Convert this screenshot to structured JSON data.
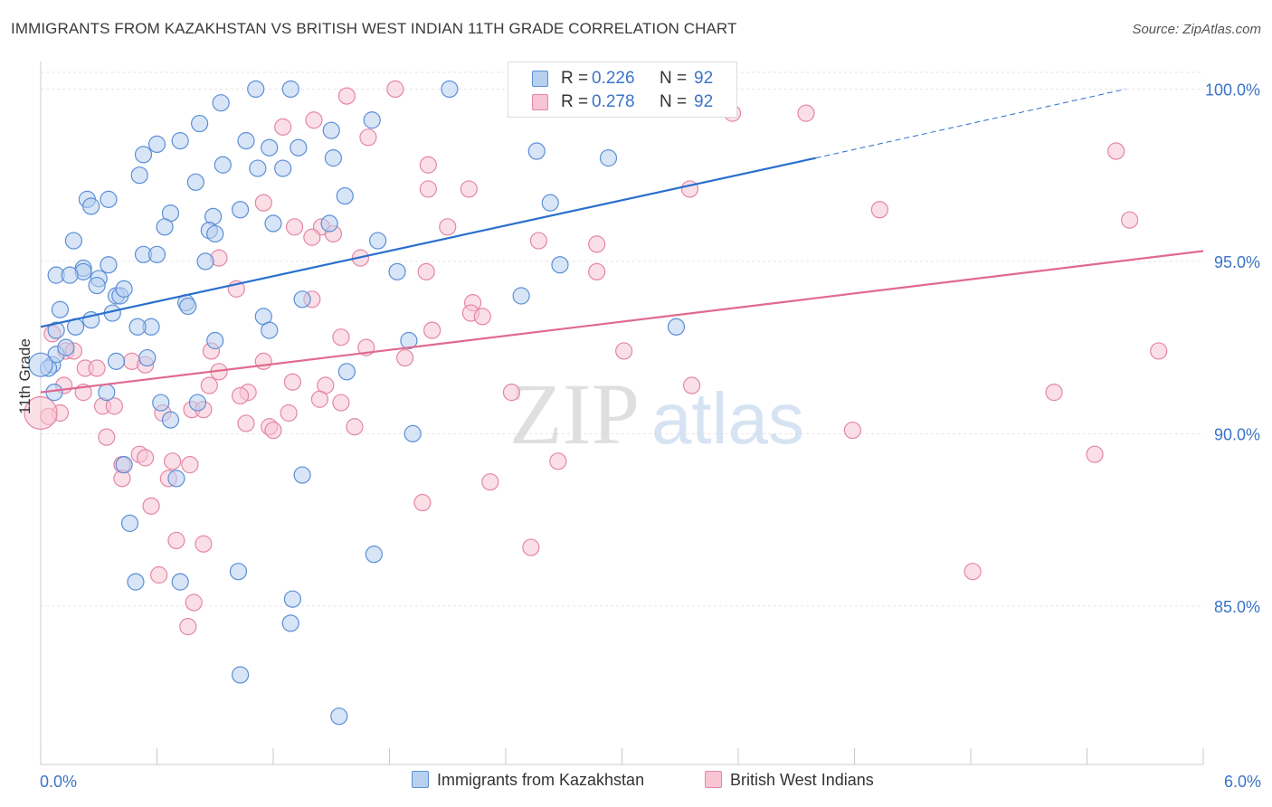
{
  "title": "IMMIGRANTS FROM KAZAKHSTAN VS BRITISH WEST INDIAN 11TH GRADE CORRELATION CHART",
  "source": "Source: ZipAtlas.com",
  "watermark": {
    "zip": "ZIP",
    "atlas": "atlas"
  },
  "legend_top": [
    {
      "r_label": "R =",
      "r_value": "0.226",
      "n_label": "N =",
      "n_value": "92"
    },
    {
      "r_label": "R =",
      "r_value": "0.278",
      "n_label": "N =",
      "n_value": "92"
    }
  ],
  "legend_bottom": [
    "Immigrants from Kazakhstan",
    "British West Indians"
  ],
  "colors": {
    "blue_fill": "#b8d0f0",
    "blue_stroke": "#5b8fd6",
    "blue_line": "#2a6fcc",
    "pink_fill": "#f8c4d4",
    "pink_stroke": "#e486a6",
    "pink_line": "#e0698f",
    "axis_text": "#3b74c8",
    "grid": "#e6e6e6"
  },
  "chart_data": {
    "type": "scatter",
    "title": "IMMIGRANTS FROM KAZAKHSTAN VS BRITISH WEST INDIAN 11TH GRADE CORRELATION CHART",
    "xlabel": "",
    "ylabel": "11th Grade",
    "xlim": [
      0,
      6
    ],
    "ylim": [
      80.4,
      100.8
    ],
    "x_tick_labels": [
      "0.0%",
      "6.0%"
    ],
    "y_ticks": [
      85,
      90,
      95,
      100
    ],
    "y_tick_labels": [
      "85.0%",
      "90.0%",
      "95.0%",
      "100.0%"
    ],
    "grid": true,
    "legend_position": "top-center",
    "series": [
      {
        "name": "Immigrants from Kazakhstan",
        "R": 0.226,
        "N": 92,
        "trend": {
          "x0": 0.0,
          "y0": 93.1,
          "x1": 4.0,
          "y1": 98.0,
          "dash_to_x": 5.6,
          "dash_to_y": 100.0
        },
        "points": [
          [
            1.11,
            100.0
          ],
          [
            1.29,
            100.0
          ],
          [
            2.11,
            100.0
          ],
          [
            0.93,
            99.6
          ],
          [
            1.71,
            99.1
          ],
          [
            0.82,
            99.0
          ],
          [
            1.5,
            98.8
          ],
          [
            0.72,
            98.5
          ],
          [
            1.06,
            98.5
          ],
          [
            1.18,
            98.3
          ],
          [
            0.6,
            98.4
          ],
          [
            0.53,
            98.1
          ],
          [
            1.33,
            98.3
          ],
          [
            2.56,
            98.2
          ],
          [
            1.51,
            98.0
          ],
          [
            2.93,
            98.0
          ],
          [
            0.94,
            97.8
          ],
          [
            1.12,
            97.7
          ],
          [
            1.25,
            97.7
          ],
          [
            0.51,
            97.5
          ],
          [
            0.8,
            97.3
          ],
          [
            0.24,
            96.8
          ],
          [
            0.35,
            96.8
          ],
          [
            1.57,
            96.9
          ],
          [
            0.26,
            96.6
          ],
          [
            1.03,
            96.5
          ],
          [
            0.67,
            96.4
          ],
          [
            0.89,
            96.3
          ],
          [
            2.63,
            96.7
          ],
          [
            1.2,
            96.1
          ],
          [
            0.64,
            96.0
          ],
          [
            1.49,
            96.1
          ],
          [
            0.87,
            95.9
          ],
          [
            0.9,
            95.8
          ],
          [
            0.17,
            95.6
          ],
          [
            1.74,
            95.6
          ],
          [
            0.53,
            95.2
          ],
          [
            0.6,
            95.2
          ],
          [
            0.85,
            95.0
          ],
          [
            0.35,
            94.9
          ],
          [
            0.22,
            94.8
          ],
          [
            0.22,
            94.7
          ],
          [
            0.08,
            94.6
          ],
          [
            0.15,
            94.6
          ],
          [
            0.3,
            94.5
          ],
          [
            0.29,
            94.3
          ],
          [
            0.39,
            94.0
          ],
          [
            0.41,
            94.0
          ],
          [
            0.75,
            93.8
          ],
          [
            0.76,
            93.7
          ],
          [
            0.1,
            93.6
          ],
          [
            0.37,
            93.5
          ],
          [
            1.15,
            93.4
          ],
          [
            0.26,
            93.3
          ],
          [
            0.57,
            93.1
          ],
          [
            0.5,
            93.1
          ],
          [
            1.35,
            93.9
          ],
          [
            1.84,
            94.7
          ],
          [
            2.48,
            94.0
          ],
          [
            3.28,
            93.1
          ],
          [
            1.18,
            93.0
          ],
          [
            0.18,
            93.1
          ],
          [
            0.9,
            92.7
          ],
          [
            0.39,
            92.1
          ],
          [
            0.06,
            92.0
          ],
          [
            0.08,
            92.3
          ],
          [
            0.04,
            91.9
          ],
          [
            0.07,
            91.2
          ],
          [
            0.34,
            91.2
          ],
          [
            1.58,
            91.8
          ],
          [
            0.62,
            90.9
          ],
          [
            0.81,
            90.9
          ],
          [
            0.67,
            90.4
          ],
          [
            1.92,
            90.0
          ],
          [
            0.43,
            89.1
          ],
          [
            0.7,
            88.7
          ],
          [
            1.35,
            88.8
          ],
          [
            0.46,
            87.4
          ],
          [
            1.72,
            86.5
          ],
          [
            1.02,
            86.0
          ],
          [
            0.49,
            85.7
          ],
          [
            0.72,
            85.7
          ],
          [
            1.3,
            85.2
          ],
          [
            1.29,
            84.5
          ],
          [
            1.03,
            83.0
          ],
          [
            1.54,
            81.8
          ],
          [
            0.08,
            93.0
          ],
          [
            0.13,
            92.5
          ],
          [
            2.68,
            94.9
          ],
          [
            0.43,
            94.2
          ],
          [
            1.9,
            92.7
          ],
          [
            0.55,
            92.2
          ]
        ]
      },
      {
        "name": "British West Indians",
        "R": 0.278,
        "N": 92,
        "trend": {
          "x0": 0.0,
          "y0": 91.2,
          "x1": 6.0,
          "y1": 95.3
        },
        "points": [
          [
            1.83,
            100.0
          ],
          [
            1.58,
            99.8
          ],
          [
            3.57,
            99.3
          ],
          [
            3.95,
            99.3
          ],
          [
            1.25,
            98.9
          ],
          [
            1.41,
            99.1
          ],
          [
            1.69,
            98.6
          ],
          [
            5.55,
            98.2
          ],
          [
            2.0,
            97.8
          ],
          [
            2.21,
            97.1
          ],
          [
            3.35,
            97.1
          ],
          [
            2.0,
            97.1
          ],
          [
            5.62,
            96.2
          ],
          [
            4.33,
            96.5
          ],
          [
            1.15,
            96.7
          ],
          [
            2.1,
            96.0
          ],
          [
            1.31,
            96.0
          ],
          [
            1.45,
            96.0
          ],
          [
            1.51,
            95.8
          ],
          [
            2.87,
            95.5
          ],
          [
            1.65,
            95.1
          ],
          [
            0.92,
            95.1
          ],
          [
            2.87,
            94.7
          ],
          [
            1.99,
            94.7
          ],
          [
            1.01,
            94.2
          ],
          [
            1.4,
            93.9
          ],
          [
            2.23,
            93.8
          ],
          [
            2.22,
            93.5
          ],
          [
            2.28,
            93.4
          ],
          [
            2.02,
            93.0
          ],
          [
            0.06,
            92.9
          ],
          [
            1.55,
            92.8
          ],
          [
            1.68,
            92.5
          ],
          [
            0.88,
            92.4
          ],
          [
            3.01,
            92.4
          ],
          [
            5.77,
            92.4
          ],
          [
            0.13,
            92.4
          ],
          [
            0.17,
            92.4
          ],
          [
            1.88,
            92.2
          ],
          [
            1.15,
            92.1
          ],
          [
            0.47,
            92.1
          ],
          [
            0.54,
            92.0
          ],
          [
            0.23,
            91.9
          ],
          [
            0.29,
            91.9
          ],
          [
            0.92,
            91.8
          ],
          [
            1.3,
            91.5
          ],
          [
            1.47,
            91.4
          ],
          [
            0.87,
            91.4
          ],
          [
            0.12,
            91.4
          ],
          [
            1.07,
            91.2
          ],
          [
            3.36,
            91.4
          ],
          [
            5.23,
            91.2
          ],
          [
            2.43,
            91.2
          ],
          [
            0.22,
            91.2
          ],
          [
            1.03,
            91.1
          ],
          [
            1.44,
            91.0
          ],
          [
            1.55,
            90.9
          ],
          [
            0.32,
            90.8
          ],
          [
            0.38,
            90.8
          ],
          [
            0.78,
            90.7
          ],
          [
            0.84,
            90.7
          ],
          [
            0.63,
            90.6
          ],
          [
            0.1,
            90.6
          ],
          [
            1.28,
            90.6
          ],
          [
            0.04,
            90.5
          ],
          [
            1.06,
            90.3
          ],
          [
            1.18,
            90.2
          ],
          [
            1.2,
            90.1
          ],
          [
            1.62,
            90.2
          ],
          [
            4.19,
            90.1
          ],
          [
            0.34,
            89.9
          ],
          [
            0.51,
            89.4
          ],
          [
            0.42,
            89.1
          ],
          [
            0.68,
            89.2
          ],
          [
            0.54,
            89.3
          ],
          [
            0.77,
            89.1
          ],
          [
            5.44,
            89.4
          ],
          [
            2.67,
            89.2
          ],
          [
            0.42,
            88.7
          ],
          [
            0.66,
            88.7
          ],
          [
            2.32,
            88.6
          ],
          [
            1.97,
            88.0
          ],
          [
            0.57,
            87.9
          ],
          [
            0.7,
            86.9
          ],
          [
            0.84,
            86.8
          ],
          [
            2.53,
            86.7
          ],
          [
            4.81,
            86.0
          ],
          [
            0.61,
            85.9
          ],
          [
            0.79,
            85.1
          ],
          [
            0.76,
            84.4
          ],
          [
            1.4,
            95.7
          ],
          [
            2.57,
            95.6
          ]
        ]
      }
    ]
  }
}
